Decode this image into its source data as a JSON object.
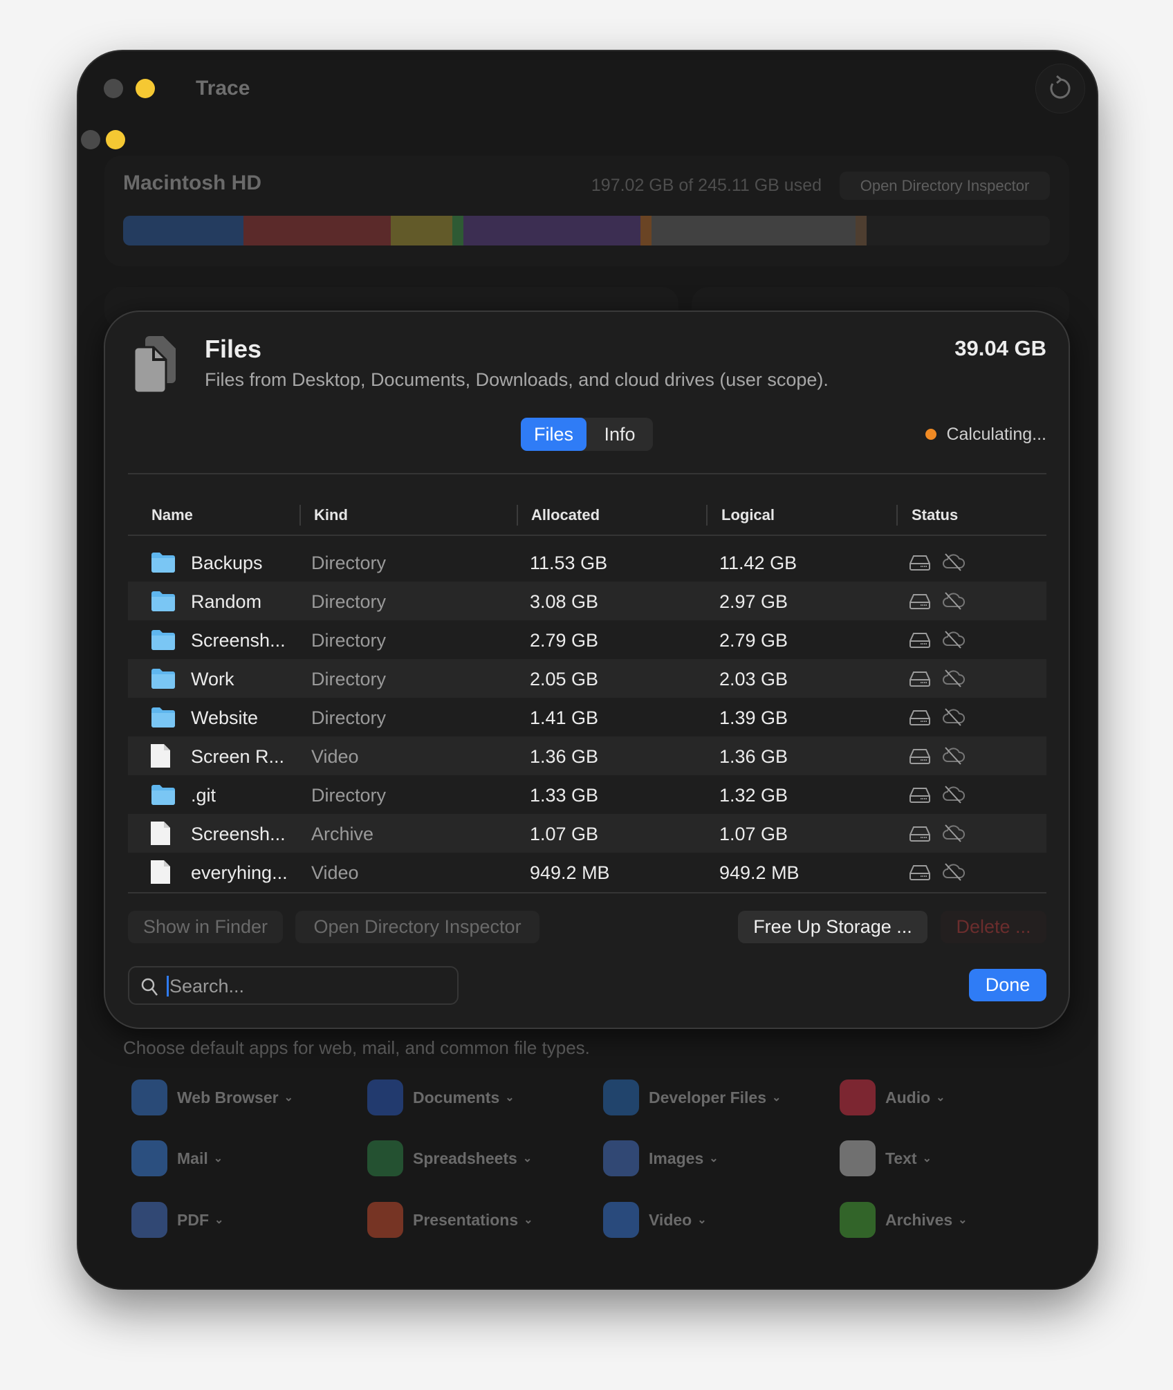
{
  "window": {
    "title": "Trace"
  },
  "disk": {
    "name": "Macintosh HD",
    "usage": "197.02 GB of 245.11 GB used",
    "inspector_button": "Open Directory Inspector",
    "segments": [
      {
        "fraction": 0.13,
        "color": "#243c5f"
      },
      {
        "fraction": 0.159,
        "color": "#5b2a2a"
      },
      {
        "fraction": 0.066,
        "color": "#625a29"
      },
      {
        "fraction": 0.012,
        "color": "#2e5a34"
      },
      {
        "fraction": 0.191,
        "color": "#3c2e52"
      },
      {
        "fraction": 0.012,
        "color": "#6a4424"
      },
      {
        "fraction": 0.22,
        "color": "#414141"
      },
      {
        "fraction": 0.012,
        "color": "#4e3e30"
      }
    ]
  },
  "sheet": {
    "title": "Files",
    "subtitle": "Files from Desktop, Documents, Downloads, and cloud drives (user scope).",
    "total": "39.04 GB",
    "tabs": [
      {
        "label": "Files",
        "active": true
      },
      {
        "label": "Info",
        "active": false
      }
    ],
    "status": "Calculating...",
    "status_color": "#f08a24",
    "columns": [
      "Name",
      "Kind",
      "Allocated",
      "Logical",
      "Status"
    ],
    "rows": [
      {
        "icon": "folder",
        "name": "Backups",
        "kind": "Directory",
        "allocated": "11.53 GB",
        "logical": "11.42 GB"
      },
      {
        "icon": "folder",
        "name": "Random",
        "kind": "Directory",
        "allocated": "3.08 GB",
        "logical": "2.97 GB"
      },
      {
        "icon": "folder",
        "name": "Screensh...",
        "kind": "Directory",
        "allocated": "2.79 GB",
        "logical": "2.79 GB"
      },
      {
        "icon": "folder",
        "name": "Work",
        "kind": "Directory",
        "allocated": "2.05 GB",
        "logical": "2.03 GB"
      },
      {
        "icon": "folder",
        "name": "Website",
        "kind": "Directory",
        "allocated": "1.41 GB",
        "logical": "1.39 GB"
      },
      {
        "icon": "file",
        "name": "Screen R...",
        "kind": "Video",
        "allocated": "1.36 GB",
        "logical": "1.36 GB"
      },
      {
        "icon": "folder",
        "name": ".git",
        "kind": "Directory",
        "allocated": "1.33 GB",
        "logical": "1.32 GB"
      },
      {
        "icon": "file",
        "name": "Screensh...",
        "kind": "Archive",
        "allocated": "1.07 GB",
        "logical": "1.07 GB"
      },
      {
        "icon": "file",
        "name": "everyhing...",
        "kind": "Video",
        "allocated": "949.2 MB",
        "logical": "949.2 MB"
      }
    ],
    "buttons": {
      "show_in_finder": "Show in Finder",
      "open_inspector": "Open Directory Inspector",
      "free_up": "Free Up Storage ...",
      "delete": "Delete ...",
      "done": "Done"
    },
    "search": {
      "placeholder": "Search...",
      "value": ""
    }
  },
  "defaults": {
    "description": "Choose default apps for web, mail, and common file types.",
    "apps": [
      {
        "label": "Web Browser",
        "color": "#3a7bd5"
      },
      {
        "label": "Documents",
        "color": "#2b5cc4"
      },
      {
        "label": "Developer Files",
        "color": "#2a6fc0"
      },
      {
        "label": "Audio",
        "color": "#e0344a"
      },
      {
        "label": "Mail",
        "color": "#3d86e6"
      },
      {
        "label": "Spreadsheets",
        "color": "#2f8a4a"
      },
      {
        "label": "Images",
        "color": "#4a78d0"
      },
      {
        "label": "Text",
        "color": "#c8c8c8"
      },
      {
        "label": "PDF",
        "color": "#4a78d0"
      },
      {
        "label": "Presentations",
        "color": "#d4502f"
      },
      {
        "label": "Video",
        "color": "#3a7be0"
      },
      {
        "label": "Archives",
        "color": "#4caf3a"
      }
    ]
  }
}
